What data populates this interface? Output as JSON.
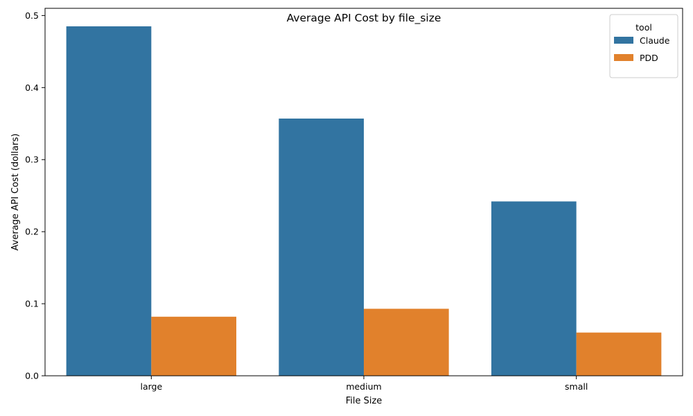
{
  "chart_data": {
    "type": "bar",
    "title": "Average API Cost by file_size",
    "xlabel": "File Size",
    "ylabel": "Average API Cost (dollars)",
    "categories": [
      "large",
      "medium",
      "small"
    ],
    "series": [
      {
        "name": "Claude",
        "color": "#3274a1",
        "values": [
          0.485,
          0.357,
          0.242
        ]
      },
      {
        "name": "PDD",
        "color": "#e1812c",
        "values": [
          0.082,
          0.093,
          0.06
        ]
      }
    ],
    "ylim": [
      0,
      0.51
    ],
    "yticks": [
      "0.0",
      "0.1",
      "0.2",
      "0.3",
      "0.4",
      "0.5"
    ],
    "legend": {
      "title": "tool",
      "position": "top-right"
    },
    "grid": false
  }
}
